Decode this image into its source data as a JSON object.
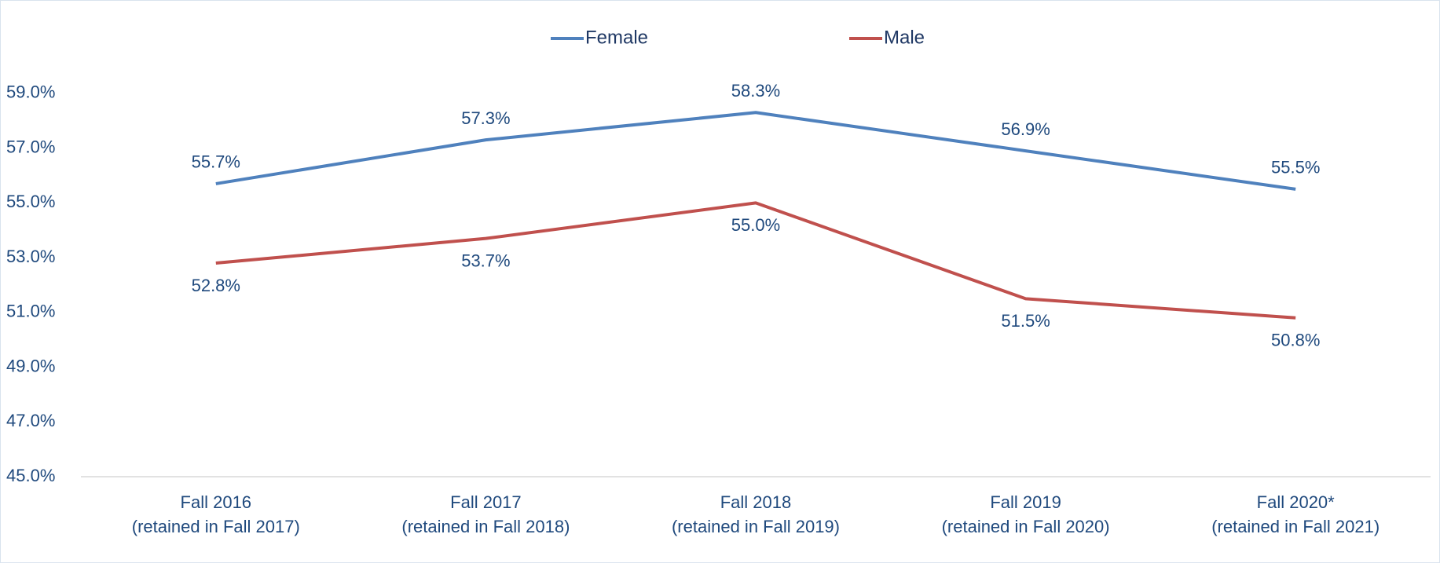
{
  "chart_data": {
    "type": "line",
    "categories": [
      [
        "Fall 2016",
        "(retained in Fall 2017)"
      ],
      [
        "Fall 2017",
        "(retained in Fall 2018)"
      ],
      [
        "Fall 2018",
        "(retained in Fall 2019)"
      ],
      [
        "Fall 2019",
        "(retained in Fall 2020)"
      ],
      [
        "Fall 2020*",
        "(retained in Fall 2021)"
      ]
    ],
    "series": [
      {
        "name": "Female",
        "color": "#4f81bd",
        "values": [
          55.7,
          57.3,
          58.3,
          56.9,
          55.5
        ],
        "value_labels": [
          "55.7%",
          "57.3%",
          "58.3%",
          "56.9%",
          "55.5%"
        ]
      },
      {
        "name": "Male",
        "color": "#c0504d",
        "values": [
          52.8,
          53.7,
          55.0,
          51.5,
          50.8
        ],
        "value_labels": [
          "52.8%",
          "53.7%",
          "55.0%",
          "51.5%",
          "50.8%"
        ]
      }
    ],
    "ylim": [
      45,
      60
    ],
    "yticks": [
      {
        "value": 45,
        "label": "45.0%"
      },
      {
        "value": 47,
        "label": "47.0%"
      },
      {
        "value": 49,
        "label": "49.0%"
      },
      {
        "value": 51,
        "label": "51.0%"
      },
      {
        "value": 53,
        "label": "53.0%"
      },
      {
        "value": 55,
        "label": "55.0%"
      },
      {
        "value": 57,
        "label": "57.0%"
      },
      {
        "value": 59,
        "label": "59.0%"
      }
    ],
    "legend": "top"
  }
}
